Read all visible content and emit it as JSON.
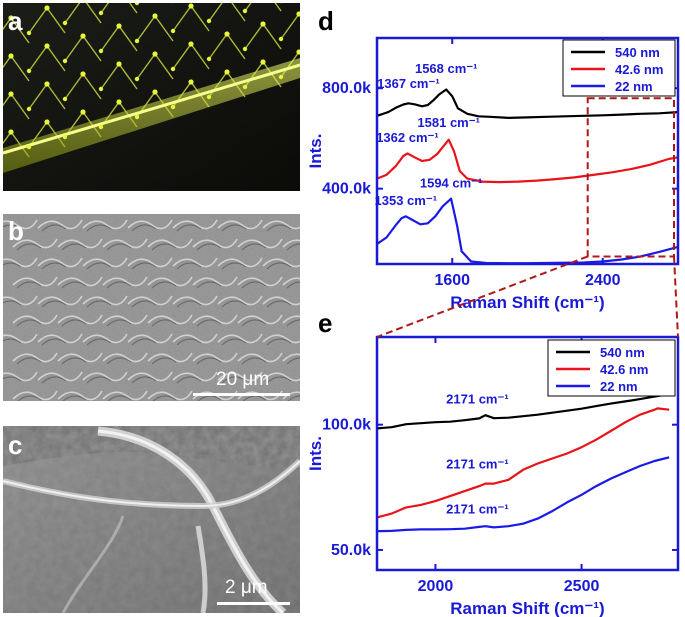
{
  "panels": {
    "a": {
      "letter": "a"
    },
    "b": {
      "letter": "b",
      "scalebar": "20 μm"
    },
    "c": {
      "letter": "c",
      "scalebar": "2 μm"
    },
    "d": {
      "letter": "d"
    },
    "e": {
      "letter": "e"
    }
  },
  "colors": {
    "axis": "#1a1ad6",
    "black_series": "#000000",
    "red_series": "#e8141a",
    "blue_series": "#1a1ae6",
    "zoom_box": "#b01818"
  },
  "chart_data": [
    {
      "type": "line",
      "panel": "d",
      "xlabel": "Raman Shift (cm⁻¹)",
      "ylabel": "Ints.",
      "xlim": [
        1200,
        2800
      ],
      "ylim": [
        100000,
        1000000
      ],
      "xticks": [
        1600,
        2400
      ],
      "yticks": [
        400000,
        800000
      ],
      "xtick_labels": [
        "1600",
        "2400"
      ],
      "ytick_labels": [
        "400.0k",
        "800.0k"
      ],
      "legend": "top-right",
      "zoom_box_x": [
        2320,
        2800
      ],
      "zoom_box_y": [
        130000,
        760000
      ],
      "series": [
        {
          "name": "540 nm",
          "color": "#000000",
          "x": [
            1200,
            1260,
            1300,
            1340,
            1367,
            1400,
            1440,
            1470,
            1500,
            1530,
            1568,
            1600,
            1630,
            1680,
            1740,
            1800,
            1900,
            2000,
            2100,
            2200,
            2300,
            2400,
            2500,
            2600,
            2700,
            2800
          ],
          "y": [
            690000,
            705000,
            722000,
            735000,
            740000,
            736000,
            728000,
            733000,
            752000,
            775000,
            795000,
            768000,
            720000,
            698000,
            688000,
            686000,
            682000,
            684000,
            686000,
            688000,
            690000,
            692000,
            695000,
            698000,
            700000,
            705000
          ]
        },
        {
          "name": "42.6 nm",
          "color": "#e8141a",
          "x": [
            1200,
            1250,
            1300,
            1340,
            1362,
            1400,
            1440,
            1480,
            1520,
            1560,
            1581,
            1610,
            1640,
            1680,
            1760,
            1850,
            1950,
            2050,
            2150,
            2250,
            2350,
            2450,
            2550,
            2650,
            2750,
            2800
          ],
          "y": [
            440000,
            455000,
            490000,
            530000,
            540000,
            525000,
            510000,
            515000,
            538000,
            575000,
            595000,
            548000,
            470000,
            440000,
            428000,
            426000,
            428000,
            432000,
            438000,
            445000,
            455000,
            465000,
            478000,
            495000,
            518000,
            525000
          ]
        },
        {
          "name": "22 nm",
          "color": "#1a1ae6",
          "x": [
            1200,
            1250,
            1300,
            1330,
            1353,
            1390,
            1430,
            1470,
            1510,
            1550,
            1594,
            1625,
            1650,
            1700,
            1780,
            1900,
            2000,
            2100,
            2200,
            2300,
            2400,
            2500,
            2600,
            2700,
            2800
          ],
          "y": [
            180000,
            205000,
            255000,
            282000,
            290000,
            275000,
            258000,
            262000,
            290000,
            330000,
            360000,
            255000,
            150000,
            110000,
            104000,
            103000,
            103000,
            104000,
            105000,
            106000,
            110000,
            118000,
            130000,
            148000,
            168000
          ]
        }
      ],
      "annotations": [
        {
          "text": "1367 cm⁻¹",
          "x": 1367,
          "y": 800000
        },
        {
          "text": "1568 cm⁻¹",
          "x": 1568,
          "y": 860000
        },
        {
          "text": "1362 cm⁻¹",
          "x": 1362,
          "y": 585000
        },
        {
          "text": "1581 cm⁻¹",
          "x": 1581,
          "y": 645000
        },
        {
          "text": "1353 cm⁻¹",
          "x": 1353,
          "y": 335000
        },
        {
          "text": "1594 cm⁻¹",
          "x": 1594,
          "y": 405000
        }
      ]
    },
    {
      "type": "line",
      "panel": "e",
      "xlabel": "Raman Shift (cm⁻¹)",
      "ylabel": "Ints.",
      "xlim": [
        1800,
        2830
      ],
      "ylim": [
        42000,
        135000
      ],
      "xticks": [
        2000,
        2500
      ],
      "yticks": [
        50000,
        100000
      ],
      "xtick_labels": [
        "2000",
        "2500"
      ],
      "ytick_labels": [
        "50.0k",
        "100.0k"
      ],
      "legend": "top-right",
      "series": [
        {
          "name": "540 nm",
          "color": "#000000",
          "x": [
            1800,
            1850,
            1900,
            1950,
            2000,
            2050,
            2100,
            2150,
            2171,
            2200,
            2250,
            2300,
            2350,
            2400,
            2450,
            2500,
            2550,
            2600,
            2650,
            2700,
            2750,
            2800
          ],
          "y": [
            98500,
            99000,
            100200,
            100600,
            101000,
            101200,
            101800,
            102500,
            103800,
            102600,
            102800,
            103400,
            104000,
            104800,
            105600,
            106400,
            107400,
            108400,
            109300,
            110200,
            111200,
            112200
          ]
        },
        {
          "name": "42.6 nm",
          "color": "#e8141a",
          "x": [
            1800,
            1850,
            1900,
            1950,
            2000,
            2050,
            2100,
            2150,
            2171,
            2200,
            2250,
            2300,
            2350,
            2400,
            2450,
            2500,
            2550,
            2600,
            2650,
            2700,
            2750,
            2760,
            2800
          ],
          "y": [
            63000,
            64500,
            67000,
            68000,
            69500,
            71500,
            73500,
            75500,
            76500,
            76500,
            78000,
            82000,
            84500,
            86500,
            88500,
            91000,
            94000,
            97500,
            101000,
            104000,
            106000,
            106500,
            106000
          ]
        },
        {
          "name": "22 nm",
          "color": "#1a1ae6",
          "x": [
            1800,
            1850,
            1900,
            1950,
            2000,
            2050,
            2100,
            2150,
            2171,
            2200,
            2250,
            2300,
            2350,
            2400,
            2450,
            2500,
            2550,
            2600,
            2650,
            2700,
            2750,
            2800
          ],
          "y": [
            57500,
            57600,
            58000,
            58200,
            58200,
            58300,
            58500,
            59200,
            59500,
            59000,
            59500,
            60500,
            62500,
            65500,
            69000,
            72000,
            75500,
            78500,
            81000,
            83500,
            85500,
            87000
          ]
        }
      ],
      "annotations": [
        {
          "text": "2171 cm⁻¹",
          "x": 2171,
          "y": 108500
        },
        {
          "text": "2171 cm⁻¹",
          "x": 2171,
          "y": 82500
        },
        {
          "text": "2171 cm⁻¹",
          "x": 2171,
          "y": 64500
        }
      ]
    }
  ]
}
